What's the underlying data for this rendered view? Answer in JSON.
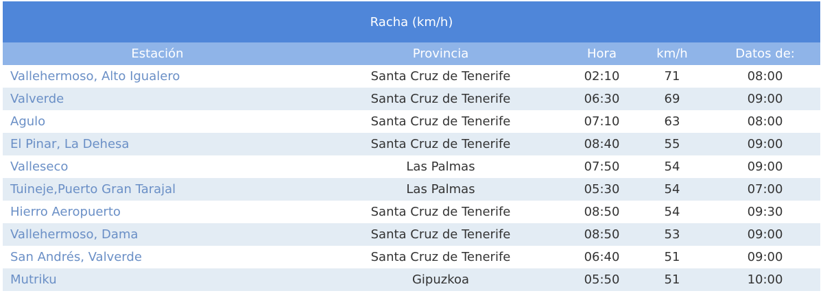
{
  "title": "Racha (km/h)",
  "columns": [
    "Estación",
    "Provincia",
    "Hora",
    "km/h",
    "Datos de:"
  ],
  "rows": [
    [
      "Vallehermoso, Alto Igualero",
      "Santa Cruz de Tenerife",
      "02:10",
      "71",
      "08:00"
    ],
    [
      "Valverde",
      "Santa Cruz de Tenerife",
      "06:30",
      "69",
      "09:00"
    ],
    [
      "Agulo",
      "Santa Cruz de Tenerife",
      "07:10",
      "63",
      "08:00"
    ],
    [
      "El Pinar, La Dehesa",
      "Santa Cruz de Tenerife",
      "08:40",
      "55",
      "09:00"
    ],
    [
      "Valleseco",
      "Las Palmas",
      "07:50",
      "54",
      "09:00"
    ],
    [
      "Tuineje,Puerto Gran Tarajal",
      "Las Palmas",
      "05:30",
      "54",
      "07:00"
    ],
    [
      "Hierro Aeropuerto",
      "Santa Cruz de Tenerife",
      "08:50",
      "54",
      "09:30"
    ],
    [
      "Vallehermoso, Dama",
      "Santa Cruz de Tenerife",
      "08:50",
      "53",
      "09:00"
    ],
    [
      "San Andrés, Valverde",
      "Santa Cruz de Tenerife",
      "06:40",
      "51",
      "09:00"
    ],
    [
      "Mutriku",
      "Gipuzkoa",
      "05:50",
      "51",
      "10:00"
    ]
  ],
  "colors": {
    "title_bg": "#4f86d9",
    "header_bg": "#8fb4e8",
    "alt_row": "#e3ecf4",
    "link": "#6a8fc6"
  }
}
